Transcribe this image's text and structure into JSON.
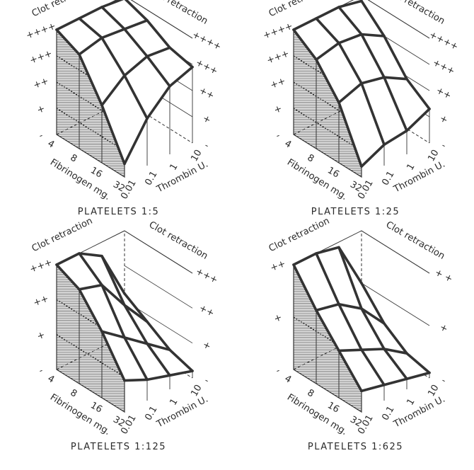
{
  "chart_data": [
    {
      "type": "surface",
      "title": "PLATELETS 1:5",
      "zlabel_left": "Clot retraction",
      "zlabel_right": "Clot retraction",
      "z_ticks_left": [
        "++++",
        "+++",
        "++",
        "+",
        "-"
      ],
      "z_ticks_right": [
        "++++",
        "+++",
        "++",
        "+",
        "-"
      ],
      "x_label": "Fibrinogen mg.",
      "x_ticks": [
        "4",
        "8",
        "16",
        "32"
      ],
      "y_label": "Thrombin U.",
      "y_ticks": [
        "0.01",
        "0.1",
        "1",
        "10"
      ],
      "z_max": 4,
      "fibrinogen": [
        4,
        8,
        16,
        32
      ],
      "thrombin": [
        0.01,
        0.1,
        1,
        10
      ],
      "values": [
        [
          4,
          4,
          4,
          3.9
        ],
        [
          3.6,
          3.8,
          3.7,
          3.6
        ],
        [
          2.2,
          2.9,
          3.2,
          3.1
        ],
        [
          0.5,
          1.8,
          2.6,
          2.9
        ]
      ]
    },
    {
      "type": "surface",
      "title": "PLATELETS 1:25",
      "zlabel_left": "Clot retraction",
      "zlabel_right": "Clot retraction",
      "z_ticks_left": [
        "++++",
        "+++",
        "++",
        "+",
        "-"
      ],
      "z_ticks_right": [
        "++++",
        "+++",
        "++",
        "+",
        "-"
      ],
      "x_label": "Fibrinogen mg.",
      "x_ticks": [
        "4",
        "8",
        "16",
        "32"
      ],
      "y_label": "Thrombin U.",
      "y_ticks": [
        "0.01",
        "0.1",
        "1",
        "10"
      ],
      "z_max": 4,
      "fibrinogen": [
        4,
        8,
        16,
        32
      ],
      "thrombin": [
        0.01,
        0.1,
        1,
        10
      ],
      "values": [
        [
          4,
          4,
          4,
          3.8
        ],
        [
          3.4,
          3.6,
          3.5,
          3
        ],
        [
          2.3,
          2.6,
          2.4,
          1.9
        ],
        [
          0.4,
          0.8,
          0.9,
          1.3
        ]
      ]
    },
    {
      "type": "surface",
      "title": "PLATELETS 1:125",
      "zlabel_left": "Clot retraction",
      "zlabel_right": "Clot retraction",
      "z_ticks_left": [
        "+++",
        "++",
        "+",
        "-"
      ],
      "z_ticks_right": [
        "+++",
        "++",
        "+",
        "-"
      ],
      "x_label": "Fibrinogen mg.",
      "x_ticks": [
        "4",
        "8",
        "16",
        "32"
      ],
      "y_label": "Thrombin U.",
      "y_ticks": [
        "0.01",
        "0.1",
        "1",
        "10"
      ],
      "z_max": 3,
      "fibrinogen": [
        4,
        8,
        16,
        32
      ],
      "thrombin": [
        0.01,
        0.1,
        1,
        10
      ],
      "values": [
        [
          3,
          3,
          2.6,
          1.2
        ],
        [
          2.7,
          2.5,
          1.6,
          0.8
        ],
        [
          1.9,
          1.4,
          0.9,
          0.4
        ],
        [
          0.9,
          0.6,
          0.4,
          0.2
        ]
      ]
    },
    {
      "type": "surface",
      "title": "PLATELETS 1:625",
      "zlabel_left": "Clot retraction",
      "zlabel_right": "Clot retraction",
      "z_ticks_left": [
        "++",
        "+",
        "-"
      ],
      "z_ticks_right": [
        "+ +",
        "+",
        "-"
      ],
      "x_label": "Fibrinogen mg.",
      "x_ticks": [
        "4",
        "8",
        "16",
        "32"
      ],
      "y_label": "Thrombin U.",
      "y_ticks": [
        "0.01",
        "0.1",
        "1",
        "10"
      ],
      "z_max": 2,
      "fibrinogen": [
        4,
        8,
        16,
        32
      ],
      "thrombin": [
        0.01,
        0.1,
        1,
        10
      ],
      "values": [
        [
          2,
          2,
          1.9,
          1
        ],
        [
          1.4,
          1.3,
          1,
          0.5
        ],
        [
          0.9,
          0.7,
          0.5,
          0.2
        ],
        [
          0.4,
          0.3,
          0.2,
          0.1
        ]
      ]
    }
  ]
}
